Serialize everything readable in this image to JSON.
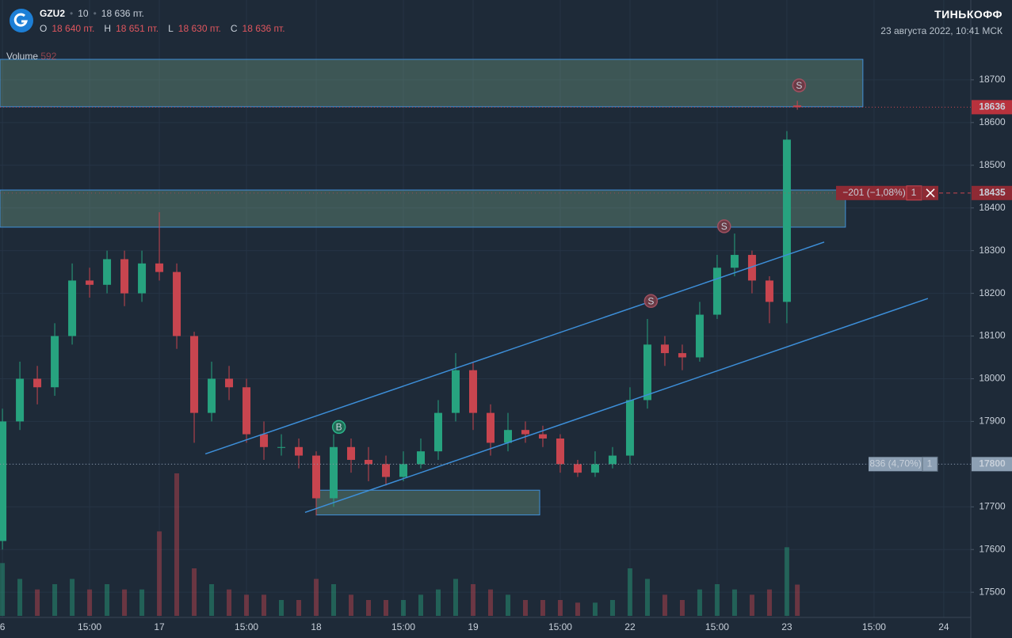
{
  "header": {
    "ticker": "GZU2",
    "interval": "10",
    "price": "18 636 пт.",
    "ohlc": [
      {
        "key": "O",
        "value": "18 640 пт."
      },
      {
        "key": "H",
        "value": "18 651 пт."
      },
      {
        "key": "L",
        "value": "18 630 пт."
      },
      {
        "key": "C",
        "value": "18 636 пт."
      }
    ],
    "brand": "ТИНЬКОФФ",
    "datetime": "23 августа 2022, 10:41 МСК"
  },
  "chart_data": {
    "type": "candlestick",
    "volume_title": "Volume",
    "x": [
      0,
      1,
      2,
      3,
      4,
      5,
      6,
      7,
      8,
      9,
      10,
      11,
      12,
      13,
      14,
      15,
      16,
      17,
      18,
      19,
      20,
      21,
      22,
      23,
      24,
      25,
      26,
      27,
      28,
      29,
      30,
      31,
      32,
      33,
      34,
      35,
      36,
      37,
      38,
      39,
      40,
      41,
      42,
      43,
      44,
      45,
      45.6
    ],
    "open": [
      17620,
      17900,
      18000,
      17980,
      18100,
      18230,
      18220,
      18280,
      18200,
      18270,
      18250,
      18100,
      17920,
      18000,
      17980,
      17870,
      17840,
      17840,
      17820,
      17720,
      17840,
      17810,
      17800,
      17770,
      17800,
      17830,
      17920,
      18020,
      17920,
      17850,
      17880,
      17870,
      17860,
      17800,
      17780,
      17800,
      17820,
      17950,
      18080,
      18060,
      18050,
      18150,
      18260,
      18290,
      18230,
      18180,
      18640
    ],
    "high": [
      17930,
      18040,
      18030,
      18130,
      18270,
      18260,
      18300,
      18300,
      18300,
      18390,
      18270,
      18110,
      18040,
      18030,
      18000,
      17900,
      17870,
      17860,
      17830,
      17870,
      17860,
      17840,
      17820,
      17830,
      17860,
      17950,
      18060,
      18040,
      17940,
      17920,
      17900,
      17890,
      17870,
      17810,
      17830,
      17840,
      17980,
      18140,
      18100,
      18080,
      18180,
      18290,
      18340,
      18300,
      18240,
      18580,
      18651
    ],
    "low": [
      17600,
      17880,
      17940,
      17960,
      18080,
      18190,
      18200,
      18170,
      18180,
      18230,
      18070,
      17850,
      17900,
      17950,
      17850,
      17810,
      17820,
      17790,
      17680,
      17700,
      17780,
      17760,
      17750,
      17760,
      17790,
      17810,
      17900,
      17880,
      17820,
      17830,
      17850,
      17840,
      17780,
      17770,
      17770,
      17790,
      17800,
      17930,
      18030,
      18020,
      18040,
      18140,
      18240,
      18200,
      18130,
      18130,
      18630
    ],
    "close": [
      17900,
      18000,
      17980,
      18100,
      18230,
      18220,
      18280,
      18200,
      18270,
      18250,
      18100,
      17920,
      18000,
      17980,
      17870,
      17840,
      17840,
      17820,
      17720,
      17840,
      17810,
      17800,
      17770,
      17800,
      17830,
      17920,
      18020,
      17920,
      17850,
      17880,
      17870,
      17860,
      17800,
      17780,
      17800,
      17820,
      17950,
      18080,
      18060,
      18050,
      18150,
      18260,
      18290,
      18230,
      18180,
      18560,
      18636
    ],
    "volume": [
      1000,
      700,
      500,
      600,
      700,
      500,
      600,
      500,
      500,
      1600,
      2700,
      900,
      600,
      500,
      400,
      400,
      300,
      300,
      700,
      600,
      400,
      300,
      300,
      300,
      400,
      500,
      700,
      600,
      500,
      400,
      300,
      300,
      300,
      250,
      250,
      300,
      900,
      700,
      400,
      300,
      500,
      600,
      500,
      400,
      500,
      1300,
      592
    ],
    "up_color": "#27a37f",
    "down_color": "#c8454f",
    "xlim": [
      -0.14,
      55.55
    ],
    "ylim": [
      17441,
      18887
    ],
    "volume_lim": [
      0,
      3000
    ],
    "xticks": [
      {
        "value": 0,
        "label": "6"
      },
      {
        "value": 5,
        "label": "15:00"
      },
      {
        "value": 9,
        "label": "17"
      },
      {
        "value": 14,
        "label": "15:00"
      },
      {
        "value": 18,
        "label": "18"
      },
      {
        "value": 23,
        "label": "15:00"
      },
      {
        "value": 27,
        "label": "19"
      },
      {
        "value": 32,
        "label": "15:00"
      },
      {
        "value": 36,
        "label": "22"
      },
      {
        "value": 41,
        "label": "15:00"
      },
      {
        "value": 45,
        "label": "23"
      },
      {
        "value": 50,
        "label": "15:00"
      },
      {
        "value": 54,
        "label": "24"
      }
    ],
    "yticks": [
      17500,
      17600,
      17700,
      17800,
      17900,
      18000,
      18100,
      18200,
      18300,
      18400,
      18500,
      18600,
      18700
    ],
    "grid": true,
    "zones": [
      {
        "low": 18637,
        "high": 18748,
        "x0": -0.14,
        "x1": 49.36
      },
      {
        "low": 18355,
        "high": 18442,
        "x0": -0.14,
        "x1": 48.36
      },
      {
        "low": 17681,
        "high": 17739,
        "x0": 18.0,
        "x1": 30.82
      }
    ],
    "trendlines": [
      {
        "x": [
          11.64,
          47.14
        ],
        "y": [
          17824,
          18320
        ]
      },
      {
        "x": [
          17.36,
          53.09
        ],
        "y": [
          17687,
          18188
        ]
      }
    ],
    "markers": [
      {
        "x": 19.3,
        "y": 17887,
        "label": "B"
      },
      {
        "x": 37.2,
        "y": 18182,
        "label": "S"
      },
      {
        "x": 41.4,
        "y": 18357,
        "label": "S"
      },
      {
        "x": 45.7,
        "y": 18687,
        "label": "S"
      }
    ],
    "order": {
      "price": 18435,
      "pnl": "−201 (−1,08%)",
      "qty": 1
    },
    "position": {
      "price": 17800,
      "pnl": "836 (4,70%)",
      "qty": 1
    }
  }
}
